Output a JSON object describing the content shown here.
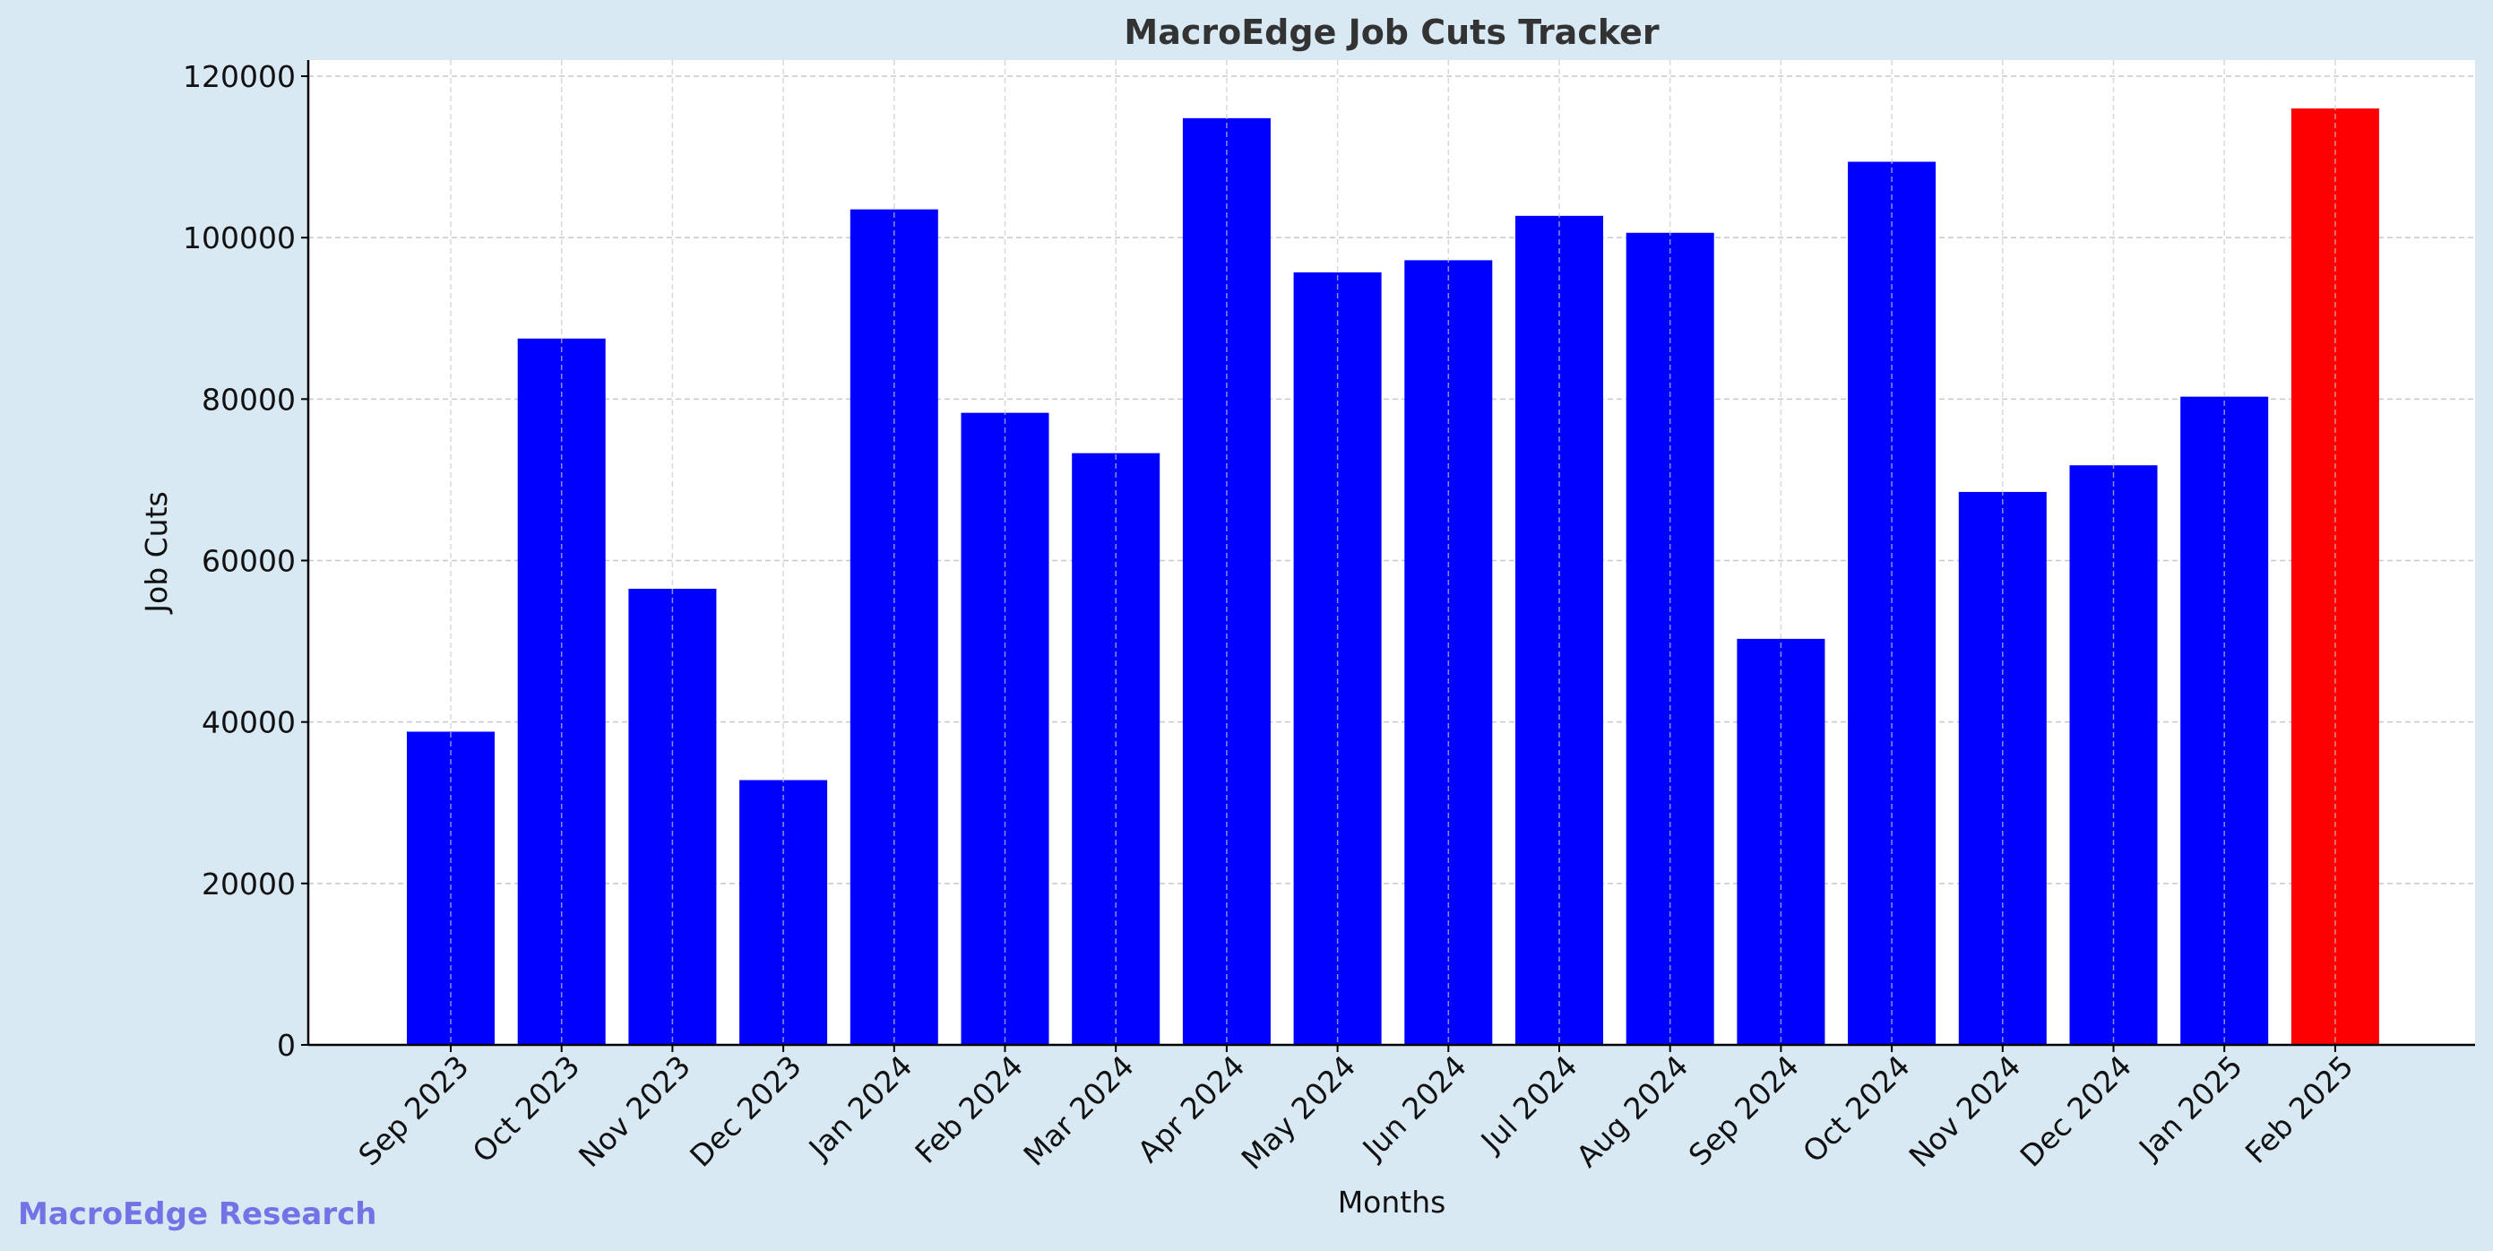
{
  "chart_data": {
    "type": "bar",
    "title": "MacroEdge Job Cuts Tracker",
    "xlabel": "Months",
    "ylabel": "Job Cuts",
    "ylim": [
      0,
      122000
    ],
    "yticks": [
      0,
      20000,
      40000,
      60000,
      80000,
      100000,
      120000
    ],
    "grid": true,
    "categories": [
      "Sep 2023",
      "Oct 2023",
      "Nov 2023",
      "Dec 2023",
      "Jan 2024",
      "Feb 2024",
      "Mar 2024",
      "Apr 2024",
      "May 2024",
      "Jun 2024",
      "Jul 2024",
      "Aug 2024",
      "Sep 2024",
      "Oct 2024",
      "Nov 2024",
      "Dec 2024",
      "Jan 2025",
      "Feb 2025"
    ],
    "values": [
      38800,
      87500,
      56500,
      32800,
      103500,
      78300,
      73300,
      114800,
      95700,
      97200,
      102700,
      100600,
      50300,
      109400,
      68500,
      71800,
      80300,
      116000
    ],
    "bar_colors": [
      "#0000ff",
      "#0000ff",
      "#0000ff",
      "#0000ff",
      "#0000ff",
      "#0000ff",
      "#0000ff",
      "#0000ff",
      "#0000ff",
      "#0000ff",
      "#0000ff",
      "#0000ff",
      "#0000ff",
      "#0000ff",
      "#0000ff",
      "#0000ff",
      "#0000ff",
      "#ff0000"
    ]
  },
  "watermark": "MacroEdge Research",
  "colors": {
    "background": "#d8e9f3",
    "plot_background": "#ffffff",
    "bar": "#0000ff",
    "highlight_bar": "#ff0000",
    "watermark": "#7373e6",
    "title": "#333333"
  }
}
